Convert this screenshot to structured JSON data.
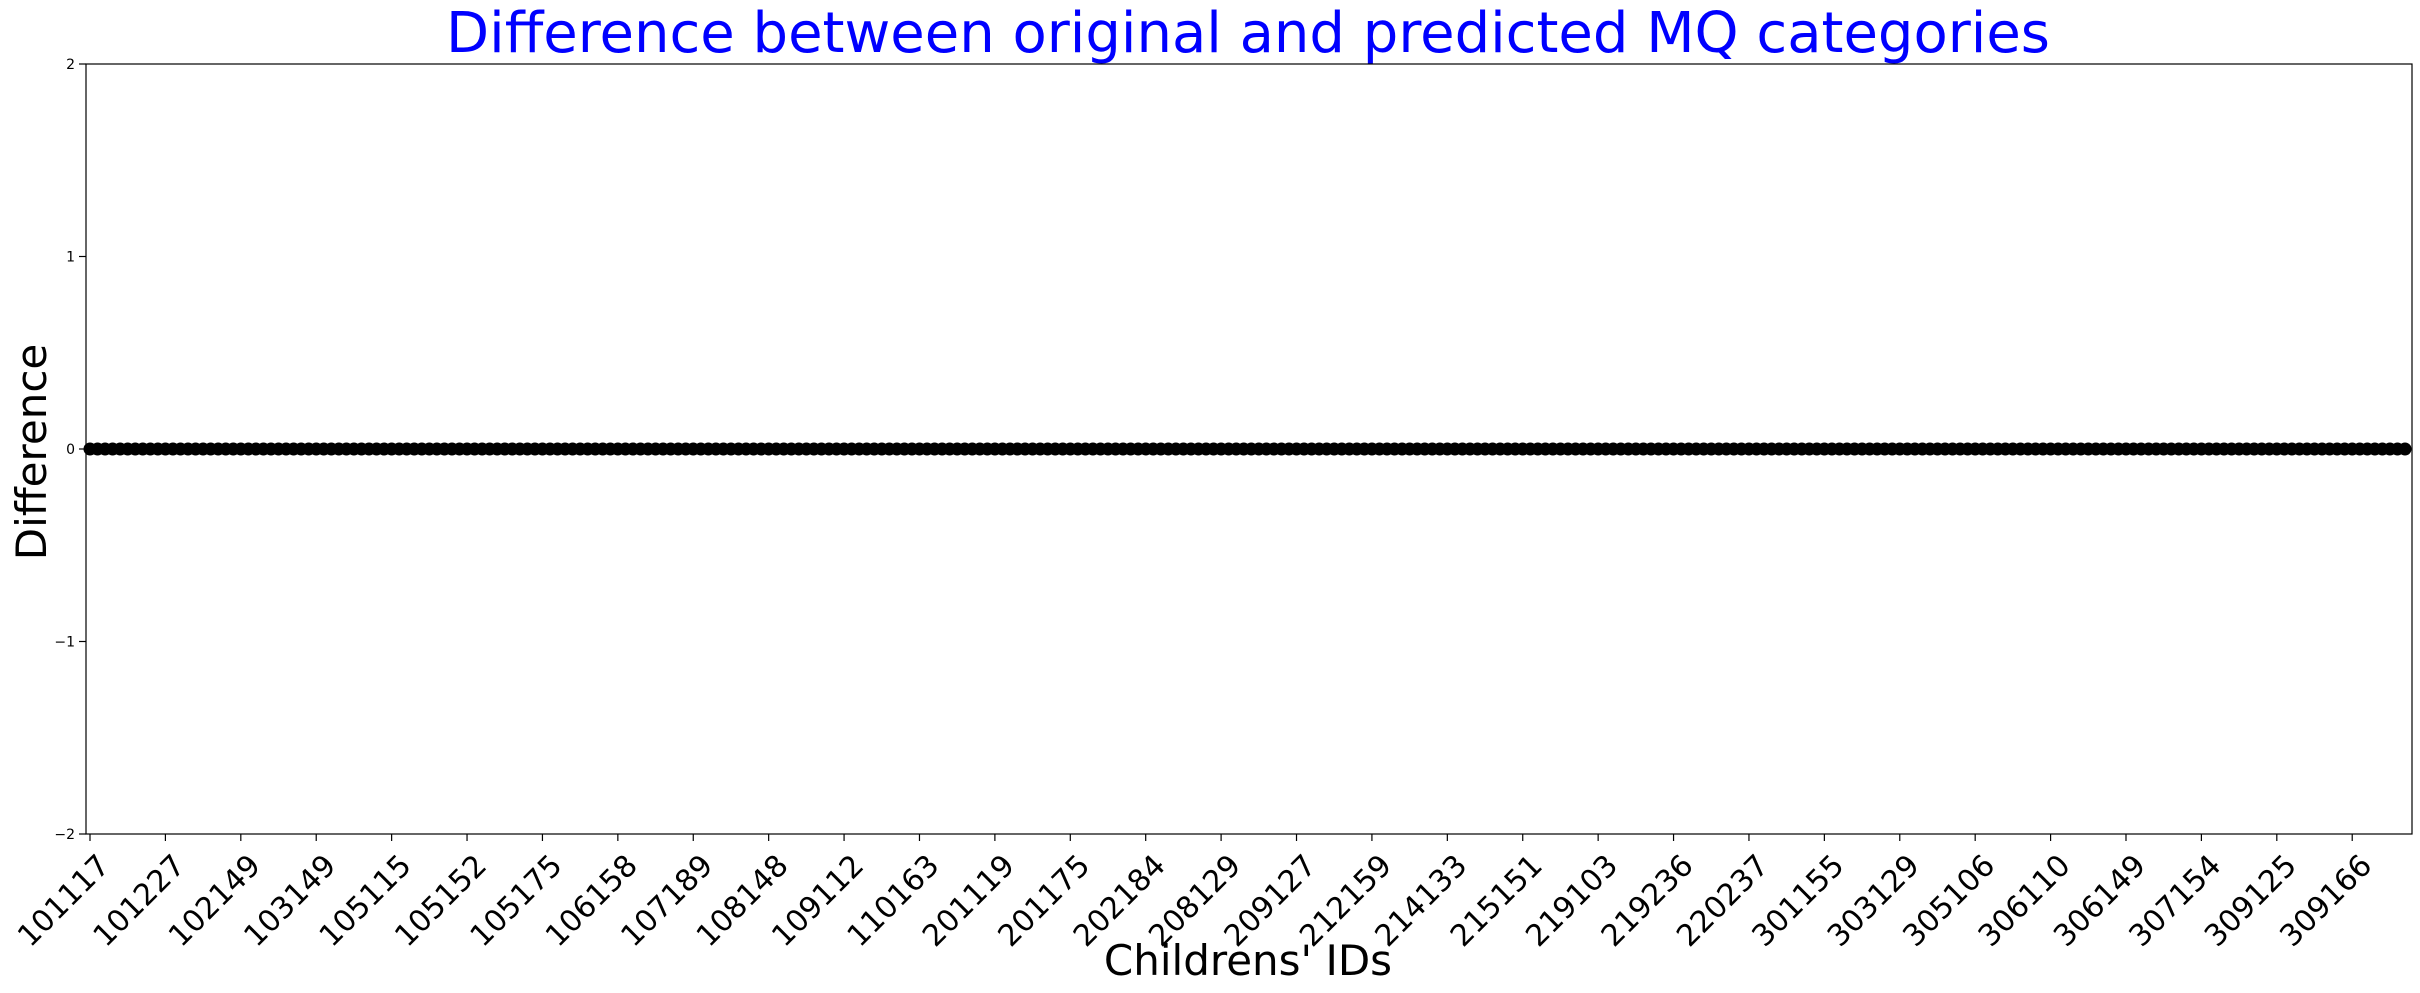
{
  "chart_data": {
    "type": "scatter",
    "title": "Difference between original and predicted MQ categories",
    "xlabel": "Childrens' IDs",
    "ylabel": "Difference",
    "ylim": [
      -2,
      2
    ],
    "yticks": [
      "−2",
      "−1",
      "0",
      "1",
      "2"
    ],
    "ytick_values": [
      -2,
      -1,
      0,
      1,
      2
    ],
    "xtick_labels": [
      "101117",
      "101227",
      "102149",
      "103149",
      "105115",
      "105152",
      "105175",
      "106158",
      "107189",
      "108148",
      "109112",
      "110163",
      "201119",
      "201175",
      "202184",
      "208129",
      "209127",
      "212159",
      "214133",
      "215151",
      "219103",
      "219236",
      "220237",
      "301155",
      "303129",
      "305106",
      "306110",
      "306149",
      "307154",
      "309125",
      "309166"
    ],
    "num_points": 308,
    "tick_every": 10,
    "point_value": 0,
    "marker_color": "#000000",
    "title_color": "#0000ff",
    "grid": false
  }
}
